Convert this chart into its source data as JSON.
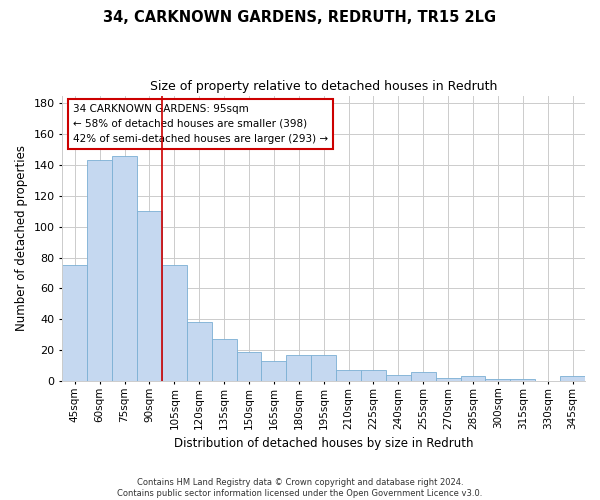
{
  "title_line1": "34, CARKNOWN GARDENS, REDRUTH, TR15 2LG",
  "title_line2": "Size of property relative to detached houses in Redruth",
  "xlabel": "Distribution of detached houses by size in Redruth",
  "ylabel": "Number of detached properties",
  "categories": [
    "45sqm",
    "60sqm",
    "75sqm",
    "90sqm",
    "105sqm",
    "120sqm",
    "135sqm",
    "150sqm",
    "165sqm",
    "180sqm",
    "195sqm",
    "210sqm",
    "225sqm",
    "240sqm",
    "255sqm",
    "270sqm",
    "285sqm",
    "300sqm",
    "315sqm",
    "330sqm",
    "345sqm"
  ],
  "values": [
    75,
    143,
    146,
    110,
    75,
    38,
    27,
    19,
    13,
    17,
    17,
    7,
    7,
    4,
    6,
    2,
    3,
    1,
    1,
    0,
    3
  ],
  "bar_color": "#c5d8f0",
  "bar_edge_color": "#7bafd4",
  "ref_line_color": "#cc0000",
  "annotation_text": "34 CARKNOWN GARDENS: 95sqm\n← 58% of detached houses are smaller (398)\n42% of semi-detached houses are larger (293) →",
  "annotation_box_color": "#ffffff",
  "annotation_box_edge": "#cc0000",
  "ylim": [
    0,
    185
  ],
  "yticks": [
    0,
    20,
    40,
    60,
    80,
    100,
    120,
    140,
    160,
    180
  ],
  "footer": "Contains HM Land Registry data © Crown copyright and database right 2024.\nContains public sector information licensed under the Open Government Licence v3.0.",
  "bg_color": "#ffffff",
  "grid_color": "#cccccc"
}
